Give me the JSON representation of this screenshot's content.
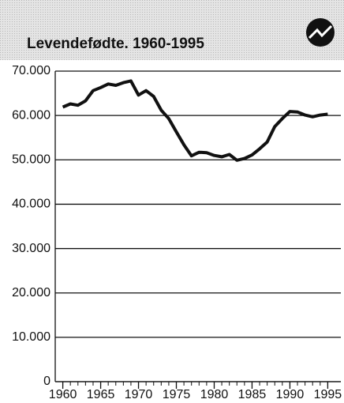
{
  "chart_data": {
    "type": "line",
    "title": "Levendefødte. 1960-1995",
    "x": [
      1960,
      1961,
      1962,
      1963,
      1964,
      1965,
      1966,
      1967,
      1968,
      1969,
      1970,
      1971,
      1972,
      1973,
      1974,
      1975,
      1976,
      1977,
      1978,
      1979,
      1980,
      1981,
      1982,
      1983,
      1984,
      1985,
      1986,
      1987,
      1988,
      1989,
      1990,
      1991,
      1992,
      1993,
      1994,
      1995
    ],
    "series": [
      {
        "color": "#111111",
        "values": [
          61900,
          62600,
          62300,
          63300,
          65600,
          66300,
          67100,
          66800,
          67400,
          67800,
          64600,
          65600,
          64300,
          61200,
          59300,
          56300,
          53400,
          50900,
          51700,
          51600,
          51000,
          50700,
          51200,
          49900,
          50300,
          51100,
          52500,
          54000,
          57500,
          59300,
          60900,
          60800,
          60100,
          59700,
          60100,
          60300
        ]
      }
    ],
    "xlim": [
      1959,
      1996
    ],
    "xticks": [
      1960,
      1965,
      1970,
      1975,
      1980,
      1985,
      1990,
      1995
    ],
    "ylim": [
      0,
      70000
    ],
    "yticks": [
      0,
      {
        "value": 10000,
        "label": "10.000"
      },
      {
        "value": 20000,
        "label": "20.000"
      },
      {
        "value": 30000,
        "label": "30.000"
      },
      {
        "value": 40000,
        "label": "40.000"
      },
      {
        "value": 50000,
        "label": "50.000"
      },
      {
        "value": 60000,
        "label": "60.000"
      },
      {
        "value": 70000,
        "label": "70.000"
      }
    ],
    "grid": true
  }
}
